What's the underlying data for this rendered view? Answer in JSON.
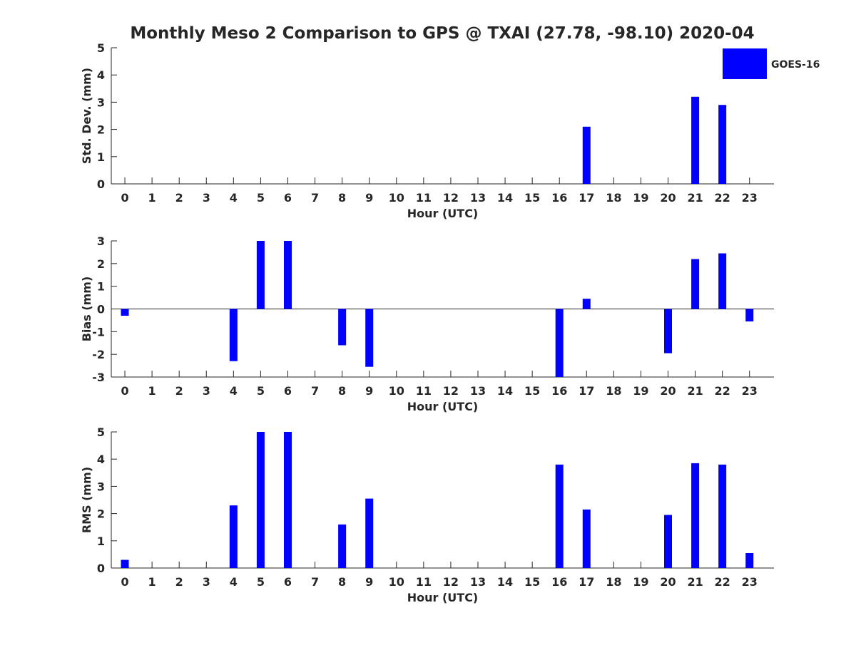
{
  "title": "Monthly Meso 2 Comparison to GPS @ TXAI (27.78, -98.10) 2020-04",
  "legend": {
    "label": "GOES-16",
    "color": "#0000ff",
    "placement": "top-right"
  },
  "chart_data": [
    {
      "type": "bar",
      "x": [
        0,
        1,
        2,
        3,
        4,
        5,
        6,
        7,
        8,
        9,
        10,
        11,
        12,
        13,
        14,
        15,
        16,
        17,
        18,
        19,
        20,
        21,
        22,
        23
      ],
      "series": [
        {
          "name": "GOES-16",
          "color": "#0000ff",
          "values": [
            null,
            null,
            null,
            null,
            null,
            null,
            null,
            null,
            null,
            null,
            null,
            null,
            null,
            null,
            null,
            null,
            null,
            2.1,
            null,
            null,
            null,
            3.2,
            2.9,
            null
          ]
        }
      ],
      "xlabel": "Hour (UTC)",
      "ylabel": "Std. Dev. (mm)",
      "xlim": [
        -0.5,
        23.9
      ],
      "ylim": [
        0,
        5
      ],
      "yticks": [
        0,
        1,
        2,
        3,
        4,
        5
      ],
      "grid": false
    },
    {
      "type": "bar",
      "x": [
        0,
        1,
        2,
        3,
        4,
        5,
        6,
        7,
        8,
        9,
        10,
        11,
        12,
        13,
        14,
        15,
        16,
        17,
        18,
        19,
        20,
        21,
        22,
        23
      ],
      "series": [
        {
          "name": "GOES-16",
          "color": "#0000ff",
          "values": [
            -0.3,
            null,
            null,
            null,
            -2.3,
            3.0,
            3.0,
            null,
            -1.6,
            -2.55,
            null,
            null,
            null,
            null,
            null,
            null,
            -3.0,
            0.45,
            null,
            null,
            -1.95,
            2.2,
            2.45,
            -0.55
          ]
        }
      ],
      "xlabel": "Hour (UTC)",
      "ylabel": "Bias (mm)",
      "xlim": [
        -0.5,
        23.9
      ],
      "ylim": [
        -3,
        3
      ],
      "yticks": [
        -3,
        -2,
        -1,
        0,
        1,
        2,
        3
      ],
      "zero_line": true,
      "grid": false
    },
    {
      "type": "bar",
      "x": [
        0,
        1,
        2,
        3,
        4,
        5,
        6,
        7,
        8,
        9,
        10,
        11,
        12,
        13,
        14,
        15,
        16,
        17,
        18,
        19,
        20,
        21,
        22,
        23
      ],
      "series": [
        {
          "name": "GOES-16",
          "color": "#0000ff",
          "values": [
            0.3,
            null,
            null,
            null,
            2.3,
            5.0,
            5.0,
            null,
            1.6,
            2.55,
            null,
            null,
            null,
            null,
            null,
            null,
            3.8,
            2.15,
            null,
            null,
            1.95,
            3.85,
            3.8,
            0.55
          ]
        }
      ],
      "xlabel": "Hour (UTC)",
      "ylabel": "RMS (mm)",
      "xlim": [
        -0.5,
        23.9
      ],
      "ylim": [
        0,
        5
      ],
      "yticks": [
        0,
        1,
        2,
        3,
        4,
        5
      ],
      "grid": false
    }
  ]
}
